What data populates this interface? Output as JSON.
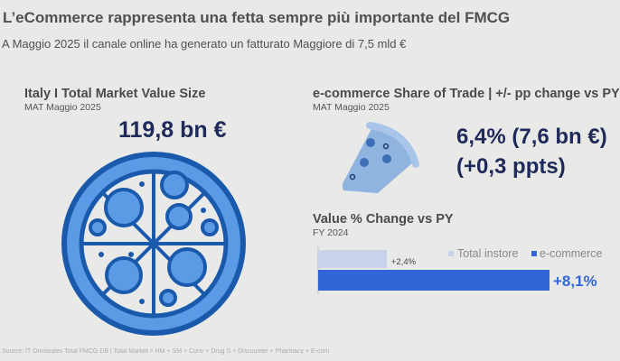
{
  "header": {
    "title": "L’eCommerce rappresenta una fetta sempre più importante del FMCG",
    "subtitle": "A Maggio 2025 il canale online ha generato un fatturato Maggiore di 7,5 mld €"
  },
  "left": {
    "title": "Italy I Total Market Value Size",
    "period": "MAT Maggio 2025",
    "value": "119,8 bn €",
    "icon": "pizza-icon"
  },
  "right": {
    "title": "e-commerce Share of Trade | +/- pp change vs PY",
    "period": "MAT Maggio 2025",
    "share": "6,4% (7,6 bn €)",
    "change": "(+0,3 ppts)",
    "icon": "pizza-slice-icon"
  },
  "chart_data": {
    "type": "bar",
    "orientation": "horizontal",
    "title": "Value % Change vs PY",
    "subtitle": "FY 2024",
    "series": [
      {
        "name": "Total instore",
        "value": 2.4,
        "label": "+2,4%",
        "color": "#c8d3ea"
      },
      {
        "name": "e-commerce",
        "value": 8.1,
        "label": "+8,1%",
        "color": "#3266d8"
      }
    ],
    "legend": "top-right",
    "xlim": [
      0,
      8.1
    ]
  },
  "footer": {
    "source": "Source: IT Omnisales Total FMCG DB | Total Market = HM + SM + Conv + Drug S + Discounter + Pharmacy + E-com"
  }
}
